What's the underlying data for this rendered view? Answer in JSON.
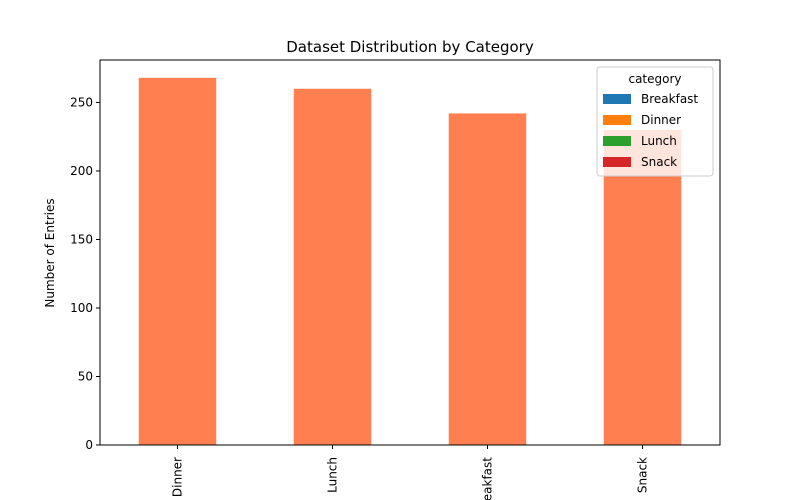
{
  "chart_data": {
    "type": "bar",
    "title": "Dataset Distribution by Category",
    "xlabel": "",
    "ylabel": "Number of Entries",
    "categories": [
      "Dinner",
      "Lunch",
      "Breakfast",
      "Snack"
    ],
    "values": [
      268,
      260,
      242,
      230
    ],
    "bar_color": "#ff7f50",
    "ylim": [
      0,
      281
    ],
    "yticks": [
      0,
      50,
      100,
      150,
      200,
      250
    ],
    "grid": false,
    "legend": {
      "title": "category",
      "placement": "upper-right",
      "entries": [
        {
          "label": "Breakfast",
          "color": "#1f77b4"
        },
        {
          "label": "Dinner",
          "color": "#ff7f0e"
        },
        {
          "label": "Lunch",
          "color": "#2ca02c"
        },
        {
          "label": "Snack",
          "color": "#d62728"
        }
      ]
    }
  }
}
